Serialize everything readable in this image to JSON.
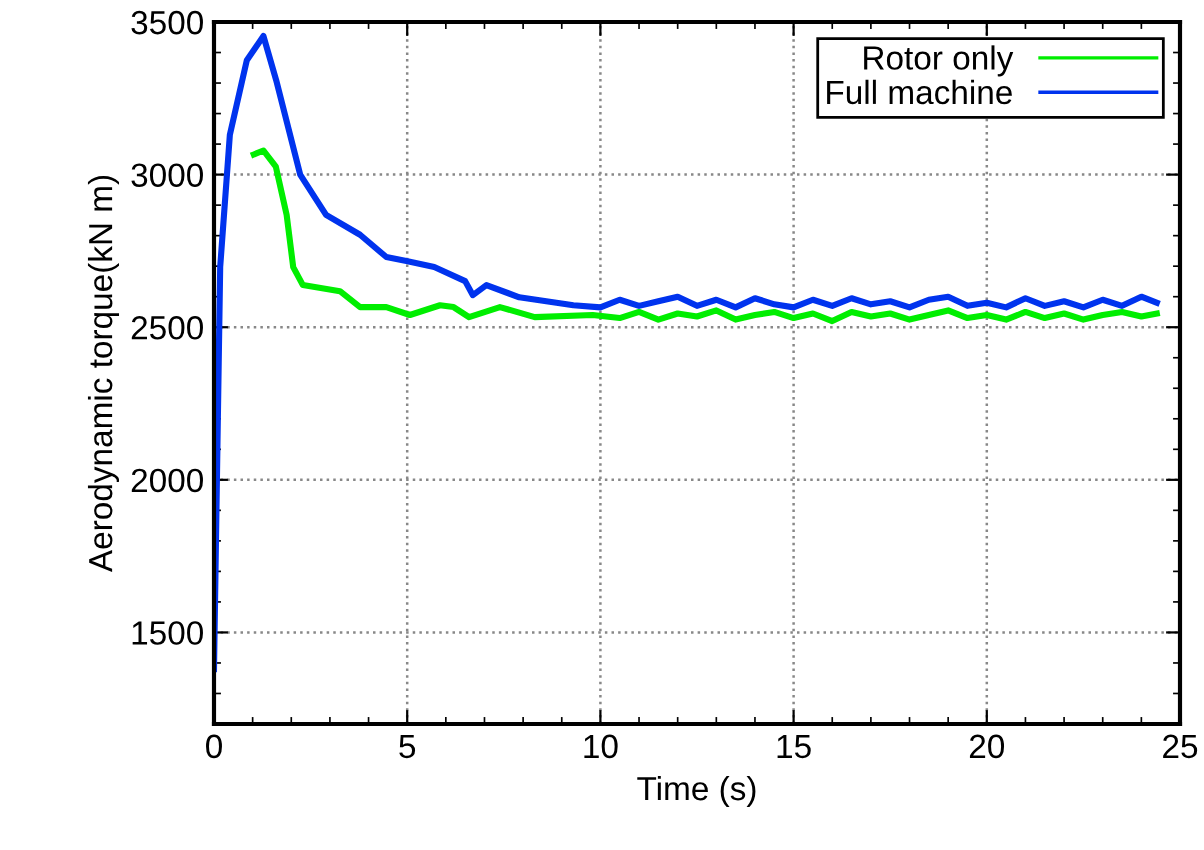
{
  "chart_data": {
    "type": "line",
    "xlabel": "Time (s)",
    "ylabel": "Aerodynamic torque(kN m)",
    "xlim": [
      0,
      25
    ],
    "xticks": [
      0,
      5,
      10,
      15,
      20,
      25
    ],
    "ylim": [
      1200,
      3500
    ],
    "yticks": [
      1500,
      2000,
      2500,
      3000,
      3500
    ],
    "grid": true,
    "legend": "top right",
    "series": [
      {
        "name": "Rotor only",
        "color": "#00ee00",
        "x": [
          1.03,
          1.28,
          1.6,
          1.88,
          2.05,
          2.3,
          3.26,
          3.78,
          4.46,
          5.07,
          5.85,
          6.2,
          6.6,
          7.4,
          8.3,
          9.8,
          10.5,
          11.0,
          11.5,
          12.0,
          12.5,
          13.0,
          13.5,
          14.0,
          14.5,
          15.0,
          15.5,
          16.0,
          16.5,
          17.0,
          17.5,
          18.0,
          18.5,
          19.0,
          19.5,
          20.0,
          20.5,
          21.0,
          21.5,
          22.0,
          22.5,
          23.0,
          23.5,
          24.0,
          24.4
        ],
        "values": [
          3066,
          3079,
          3026,
          2868,
          2697,
          2638,
          2618,
          2566,
          2566,
          2540,
          2572,
          2566,
          2533,
          2566,
          2533,
          2540,
          2530,
          2550,
          2525,
          2545,
          2535,
          2555,
          2525,
          2540,
          2550,
          2530,
          2545,
          2520,
          2550,
          2535,
          2545,
          2525,
          2540,
          2555,
          2530,
          2540,
          2525,
          2550,
          2530,
          2545,
          2525,
          2540,
          2550,
          2535,
          2545
        ]
      },
      {
        "name": "Full machine",
        "color": "#0033ee",
        "x": [
          0,
          0.16,
          0.41,
          0.85,
          1.28,
          1.61,
          2.23,
          2.9,
          3.78,
          4.46,
          4.98,
          5.7,
          6.5,
          6.7,
          7.05,
          7.9,
          9.3,
          10.0,
          10.5,
          11.0,
          11.5,
          12.0,
          12.5,
          13.0,
          13.5,
          14.0,
          14.5,
          15.0,
          15.5,
          16.0,
          16.5,
          17.0,
          17.5,
          18.0,
          18.5,
          19.0,
          19.5,
          20.0,
          20.5,
          21.0,
          21.5,
          22.0,
          22.5,
          23.0,
          23.5,
          24.0,
          24.4
        ],
        "values": [
          1380,
          2697,
          3130,
          3375,
          3454,
          3309,
          3000,
          2868,
          2803,
          2730,
          2717,
          2697,
          2651,
          2605,
          2638,
          2598,
          2572,
          2565,
          2590,
          2570,
          2585,
          2600,
          2570,
          2590,
          2565,
          2595,
          2575,
          2565,
          2590,
          2570,
          2595,
          2575,
          2585,
          2565,
          2590,
          2600,
          2570,
          2580,
          2565,
          2595,
          2570,
          2585,
          2565,
          2590,
          2570,
          2600,
          2580
        ]
      }
    ]
  }
}
